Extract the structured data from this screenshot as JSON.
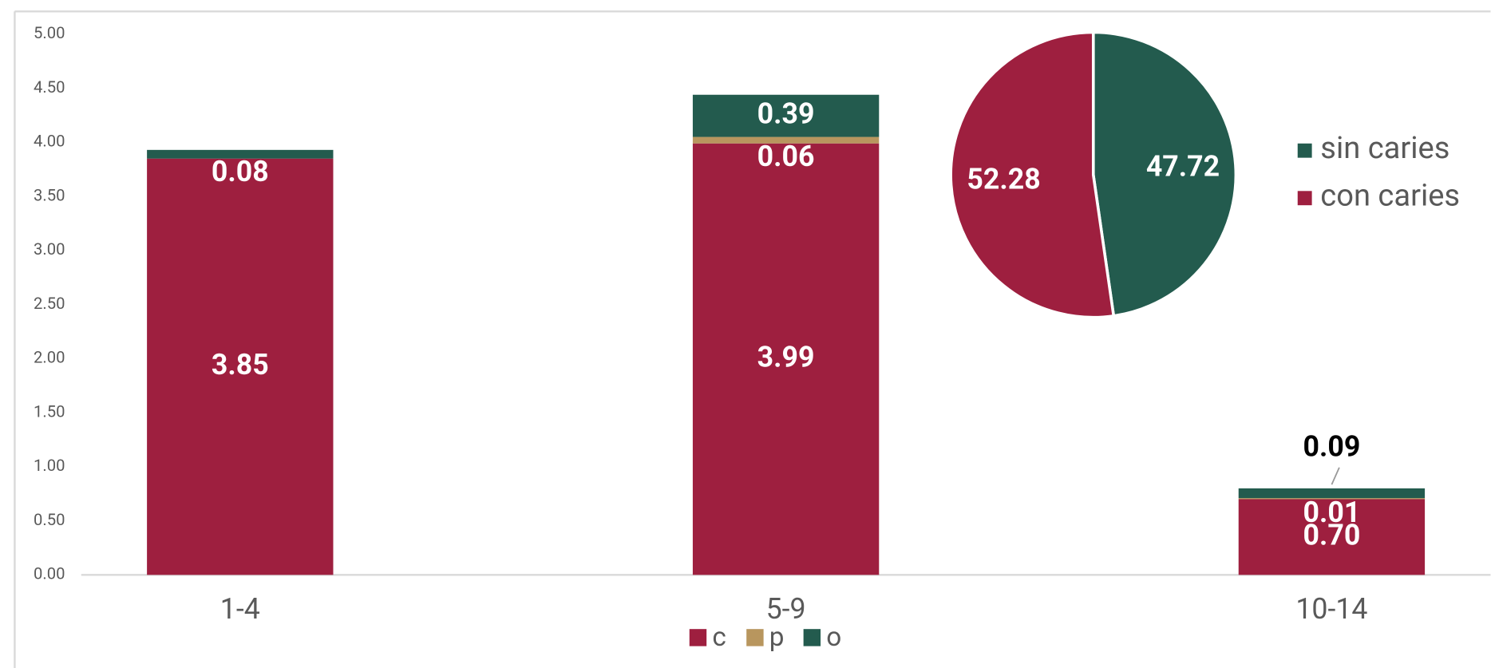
{
  "chart_data": [
    {
      "type": "bar",
      "stacked": true,
      "categories": [
        "1-4",
        "5-9",
        "10-14"
      ],
      "series": [
        {
          "name": "c",
          "color": "#9e1f3f",
          "values": [
            3.85,
            3.99,
            0.7
          ],
          "value_labels": [
            "3.85",
            "3.99",
            "0.70"
          ]
        },
        {
          "name": "p",
          "color": "#b8965e",
          "values": [
            null,
            0.06,
            0.01
          ],
          "value_labels": [
            null,
            "0.06",
            "0.01"
          ]
        },
        {
          "name": "o",
          "color": "#235b4e",
          "values": [
            0.08,
            0.39,
            0.09
          ],
          "value_labels": [
            "0.08",
            "0.39",
            "0.09"
          ]
        }
      ],
      "ylim": [
        0,
        5
      ],
      "yticks": [
        {
          "value": 0,
          "label": "0.00"
        },
        {
          "value": 0.5,
          "label": "0.50"
        },
        {
          "value": 1,
          "label": "1.00"
        },
        {
          "value": 1.5,
          "label": "1.50"
        },
        {
          "value": 2,
          "label": "2.00"
        },
        {
          "value": 2.5,
          "label": "2.50"
        },
        {
          "value": 3,
          "label": "3.00"
        },
        {
          "value": 3.5,
          "label": "3.50"
        },
        {
          "value": 4,
          "label": "4.00"
        },
        {
          "value": 4.5,
          "label": "4.50"
        },
        {
          "value": 5,
          "label": "5.00"
        }
      ],
      "legend": "bottom"
    },
    {
      "type": "pie",
      "categories": [
        "sin caries",
        "con caries"
      ],
      "values": [
        47.72,
        52.28
      ],
      "colors": [
        "#235b4e",
        "#9e1f3f"
      ],
      "legend": "right"
    }
  ]
}
